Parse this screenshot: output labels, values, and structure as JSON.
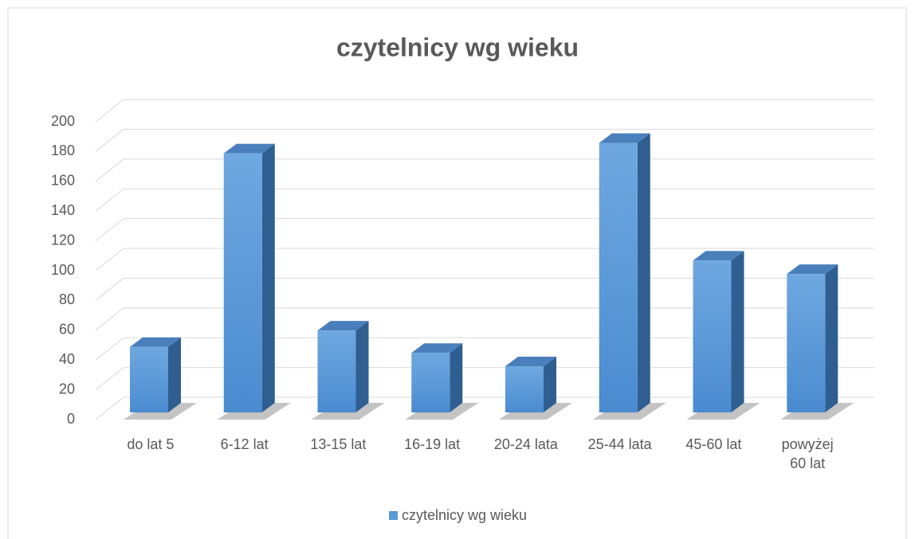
{
  "chart_data": {
    "type": "bar",
    "title": "czytelnicy wg wieku",
    "categories": [
      "do lat 5",
      "6-12 lat",
      "13-15 lat",
      "16-19 lat",
      "20-24 lata",
      "25-44 lata",
      "45-60 lat",
      "powyżej 60 lat"
    ],
    "series": [
      {
        "name": "czytelnicy wg wieku",
        "color": "#5b9bd5",
        "values": [
          44,
          174,
          55,
          40,
          31,
          181,
          102,
          93
        ]
      }
    ],
    "ylim": [
      0,
      200
    ],
    "yticks": [
      0,
      20,
      40,
      60,
      80,
      100,
      120,
      140,
      160,
      180,
      200
    ],
    "grid": true,
    "legend": "bottom"
  }
}
